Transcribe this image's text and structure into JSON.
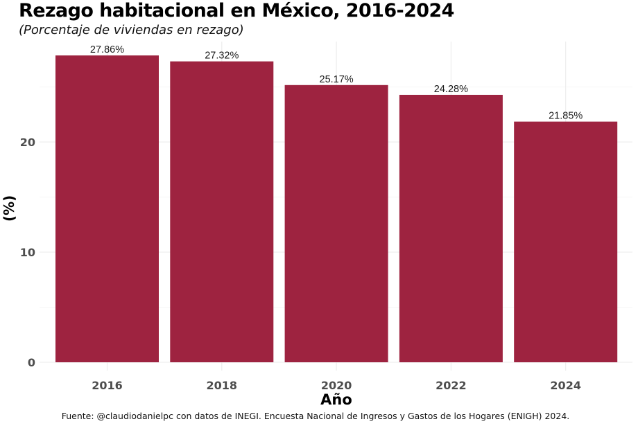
{
  "chart_data": {
    "type": "bar",
    "title": "Rezago habitacional en México, 2016-2024",
    "subtitle": "(Porcentaje de viviendas en rezago)",
    "xlabel": "Año",
    "ylabel": "(%)",
    "caption": "Fuente: @claudiodanielpc con datos de INEGI. Encuesta Nacional de Ingresos y Gastos de los Hogares (ENIGH) 2024.",
    "categories": [
      "2016",
      "2018",
      "2020",
      "2022",
      "2024"
    ],
    "values": [
      27.86,
      27.32,
      25.17,
      24.28,
      21.85
    ],
    "data_labels": [
      "27.86%",
      "27.32%",
      "25.17%",
      "24.28%",
      "21.85%"
    ],
    "ylim": [
      0,
      29.2
    ],
    "yticks": [
      0,
      10,
      20
    ],
    "ytick_labels": [
      "0",
      "10",
      "20"
    ],
    "grid": true,
    "bar_color": "#9e2340"
  }
}
